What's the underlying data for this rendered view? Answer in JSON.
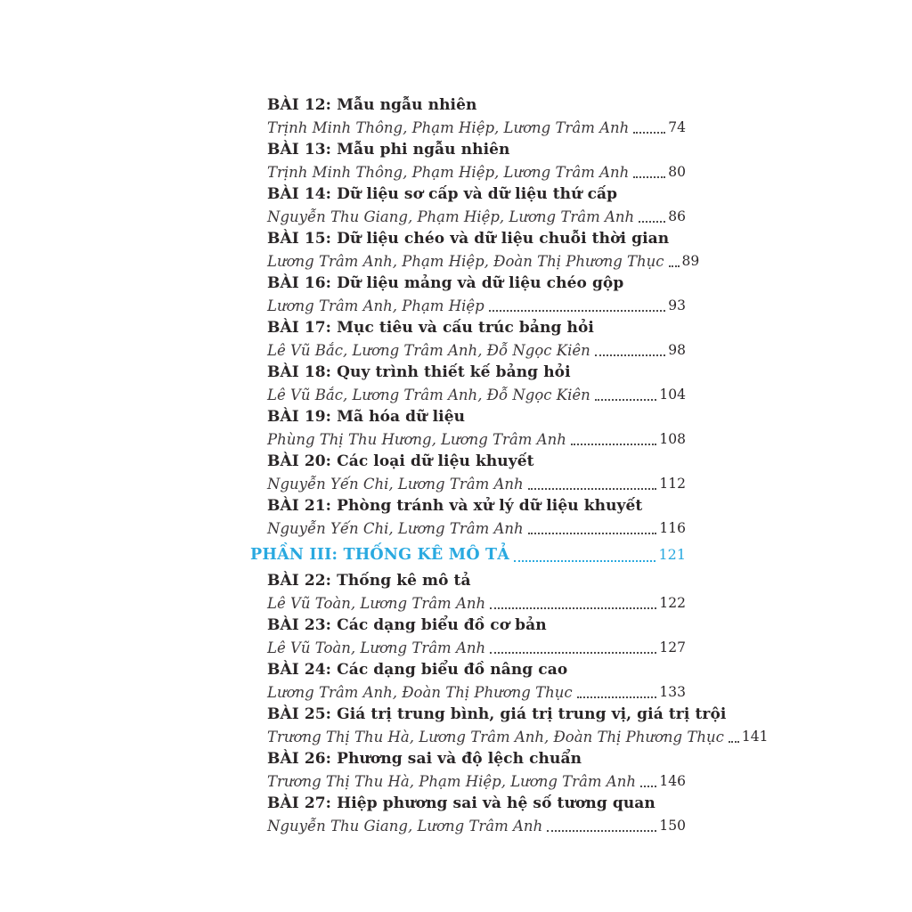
{
  "page": {
    "background": "#ffffff",
    "accent_color": "#29a9e0",
    "title_color": "#282425",
    "author_color": "#3c383a"
  },
  "toc": {
    "entries": [
      {
        "type": "lesson",
        "title": "BÀI 12: Mẫu ngẫu nhiên",
        "authors": "Trịnh Minh Thông, Phạm Hiệp, Lương Trâm Anh",
        "page": "74"
      },
      {
        "type": "lesson",
        "title": "BÀI 13: Mẫu phi ngẫu nhiên",
        "authors": "Trịnh Minh Thông, Phạm Hiệp, Lương Trâm Anh",
        "page": "80"
      },
      {
        "type": "lesson",
        "title": "BÀI 14: Dữ liệu sơ cấp và dữ liệu thứ cấp",
        "authors": "Nguyễn Thu Giang, Phạm Hiệp, Lương Trâm Anh",
        "page": "86"
      },
      {
        "type": "lesson",
        "title": "BÀI 15: Dữ liệu chéo và dữ liệu chuỗi thời gian",
        "authors": "Lương Trâm Anh, Phạm Hiệp, Đoàn Thị Phương Thục",
        "page": "89"
      },
      {
        "type": "lesson",
        "title": "BÀI 16: Dữ liệu mảng và dữ liệu chéo gộp",
        "authors": "Lương Trâm Anh, Phạm Hiệp",
        "page": "93"
      },
      {
        "type": "lesson",
        "title": "BÀI 17: Mục tiêu và cấu trúc bảng hỏi",
        "authors": "Lê Vũ Bắc, Lương Trâm Anh, Đỗ Ngọc Kiên",
        "page": "98"
      },
      {
        "type": "lesson",
        "title": "BÀI 18: Quy trình thiết kế bảng hỏi",
        "authors": "Lê Vũ Bắc, Lương Trâm Anh, Đỗ Ngọc Kiên",
        "page": "104"
      },
      {
        "type": "lesson",
        "title": "BÀI 19: Mã hóa dữ liệu",
        "authors": "Phùng Thị Thu Hương, Lương Trâm Anh",
        "page": "108"
      },
      {
        "type": "lesson",
        "title": "BÀI 20: Các loại dữ liệu khuyết",
        "authors": "Nguyễn Yến Chi, Lương Trâm Anh",
        "page": "112"
      },
      {
        "type": "lesson",
        "title": "BÀI 21: Phòng tránh và xử lý dữ liệu khuyết",
        "authors": "Nguyễn Yến Chi, Lương Trâm Anh",
        "page": "116"
      },
      {
        "type": "section",
        "title": "PHẦN III: THỐNG KÊ MÔ TẢ",
        "page": "121"
      },
      {
        "type": "lesson",
        "title": "BÀI 22: Thống kê mô tả",
        "authors": "Lê Vũ Toàn, Lương Trâm Anh",
        "page": "122"
      },
      {
        "type": "lesson",
        "title": "BÀI 23: Các dạng biểu đồ cơ bản",
        "authors": "Lê Vũ Toàn, Lương Trâm Anh",
        "page": "127"
      },
      {
        "type": "lesson",
        "title": "BÀI 24: Các dạng biểu đồ nâng cao",
        "authors": "Lương Trâm Anh, Đoàn Thị Phương Thục",
        "page": "133"
      },
      {
        "type": "lesson",
        "title": "BÀI 25: Giá trị trung bình, giá trị trung vị, giá trị trội",
        "authors": "Trương Thị Thu Hà, Lương Trâm Anh, Đoàn Thị Phương Thục",
        "page": "141"
      },
      {
        "type": "lesson",
        "title": "BÀI 26: Phương sai và độ lệch chuẩn",
        "authors": "Trương Thị Thu Hà, Phạm Hiệp, Lương Trâm Anh",
        "page": "146"
      },
      {
        "type": "lesson",
        "title": "BÀI 27: Hiệp phương sai và hệ số tương quan",
        "authors": "Nguyễn Thu Giang, Lương Trâm Anh",
        "page": "150"
      }
    ]
  }
}
